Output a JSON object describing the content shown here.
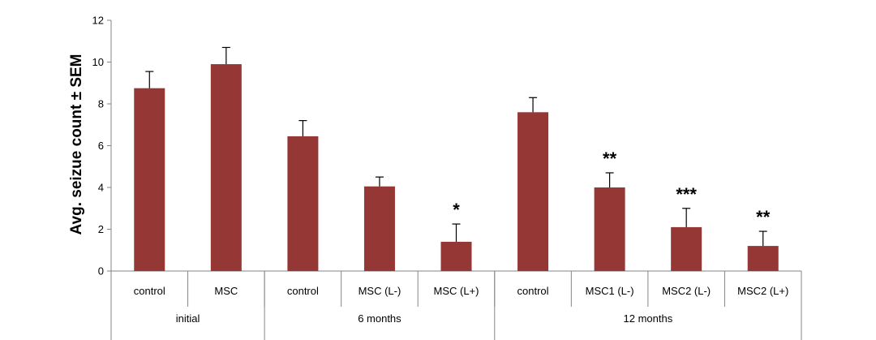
{
  "chart_data": {
    "type": "bar",
    "title": "",
    "ylabel": "Avg. seizue count ± SEM",
    "xlabel": "",
    "ylim": [
      0,
      12
    ],
    "yticks": [
      0,
      2,
      4,
      6,
      8,
      10,
      12
    ],
    "grid": false,
    "bar_color": "#953735",
    "groups": [
      {
        "label": "initial",
        "count": 2
      },
      {
        "label": "6 months",
        "count": 3
      },
      {
        "label": "12 months",
        "count": 4
      }
    ],
    "categories": [
      "control",
      "MSC",
      "control",
      "MSC (L-)",
      "MSC (L+)",
      "control",
      "MSC1 (L-)",
      "MSC2 (L-)",
      "MSC2 (L+)"
    ],
    "values": [
      8.75,
      9.9,
      6.45,
      4.05,
      1.4,
      7.6,
      4.0,
      2.1,
      1.2
    ],
    "errors": [
      0.8,
      0.8,
      0.75,
      0.45,
      0.85,
      0.7,
      0.7,
      0.9,
      0.7
    ],
    "significance": [
      "",
      "",
      "",
      "",
      "*",
      "",
      "**",
      "***",
      "**"
    ]
  }
}
